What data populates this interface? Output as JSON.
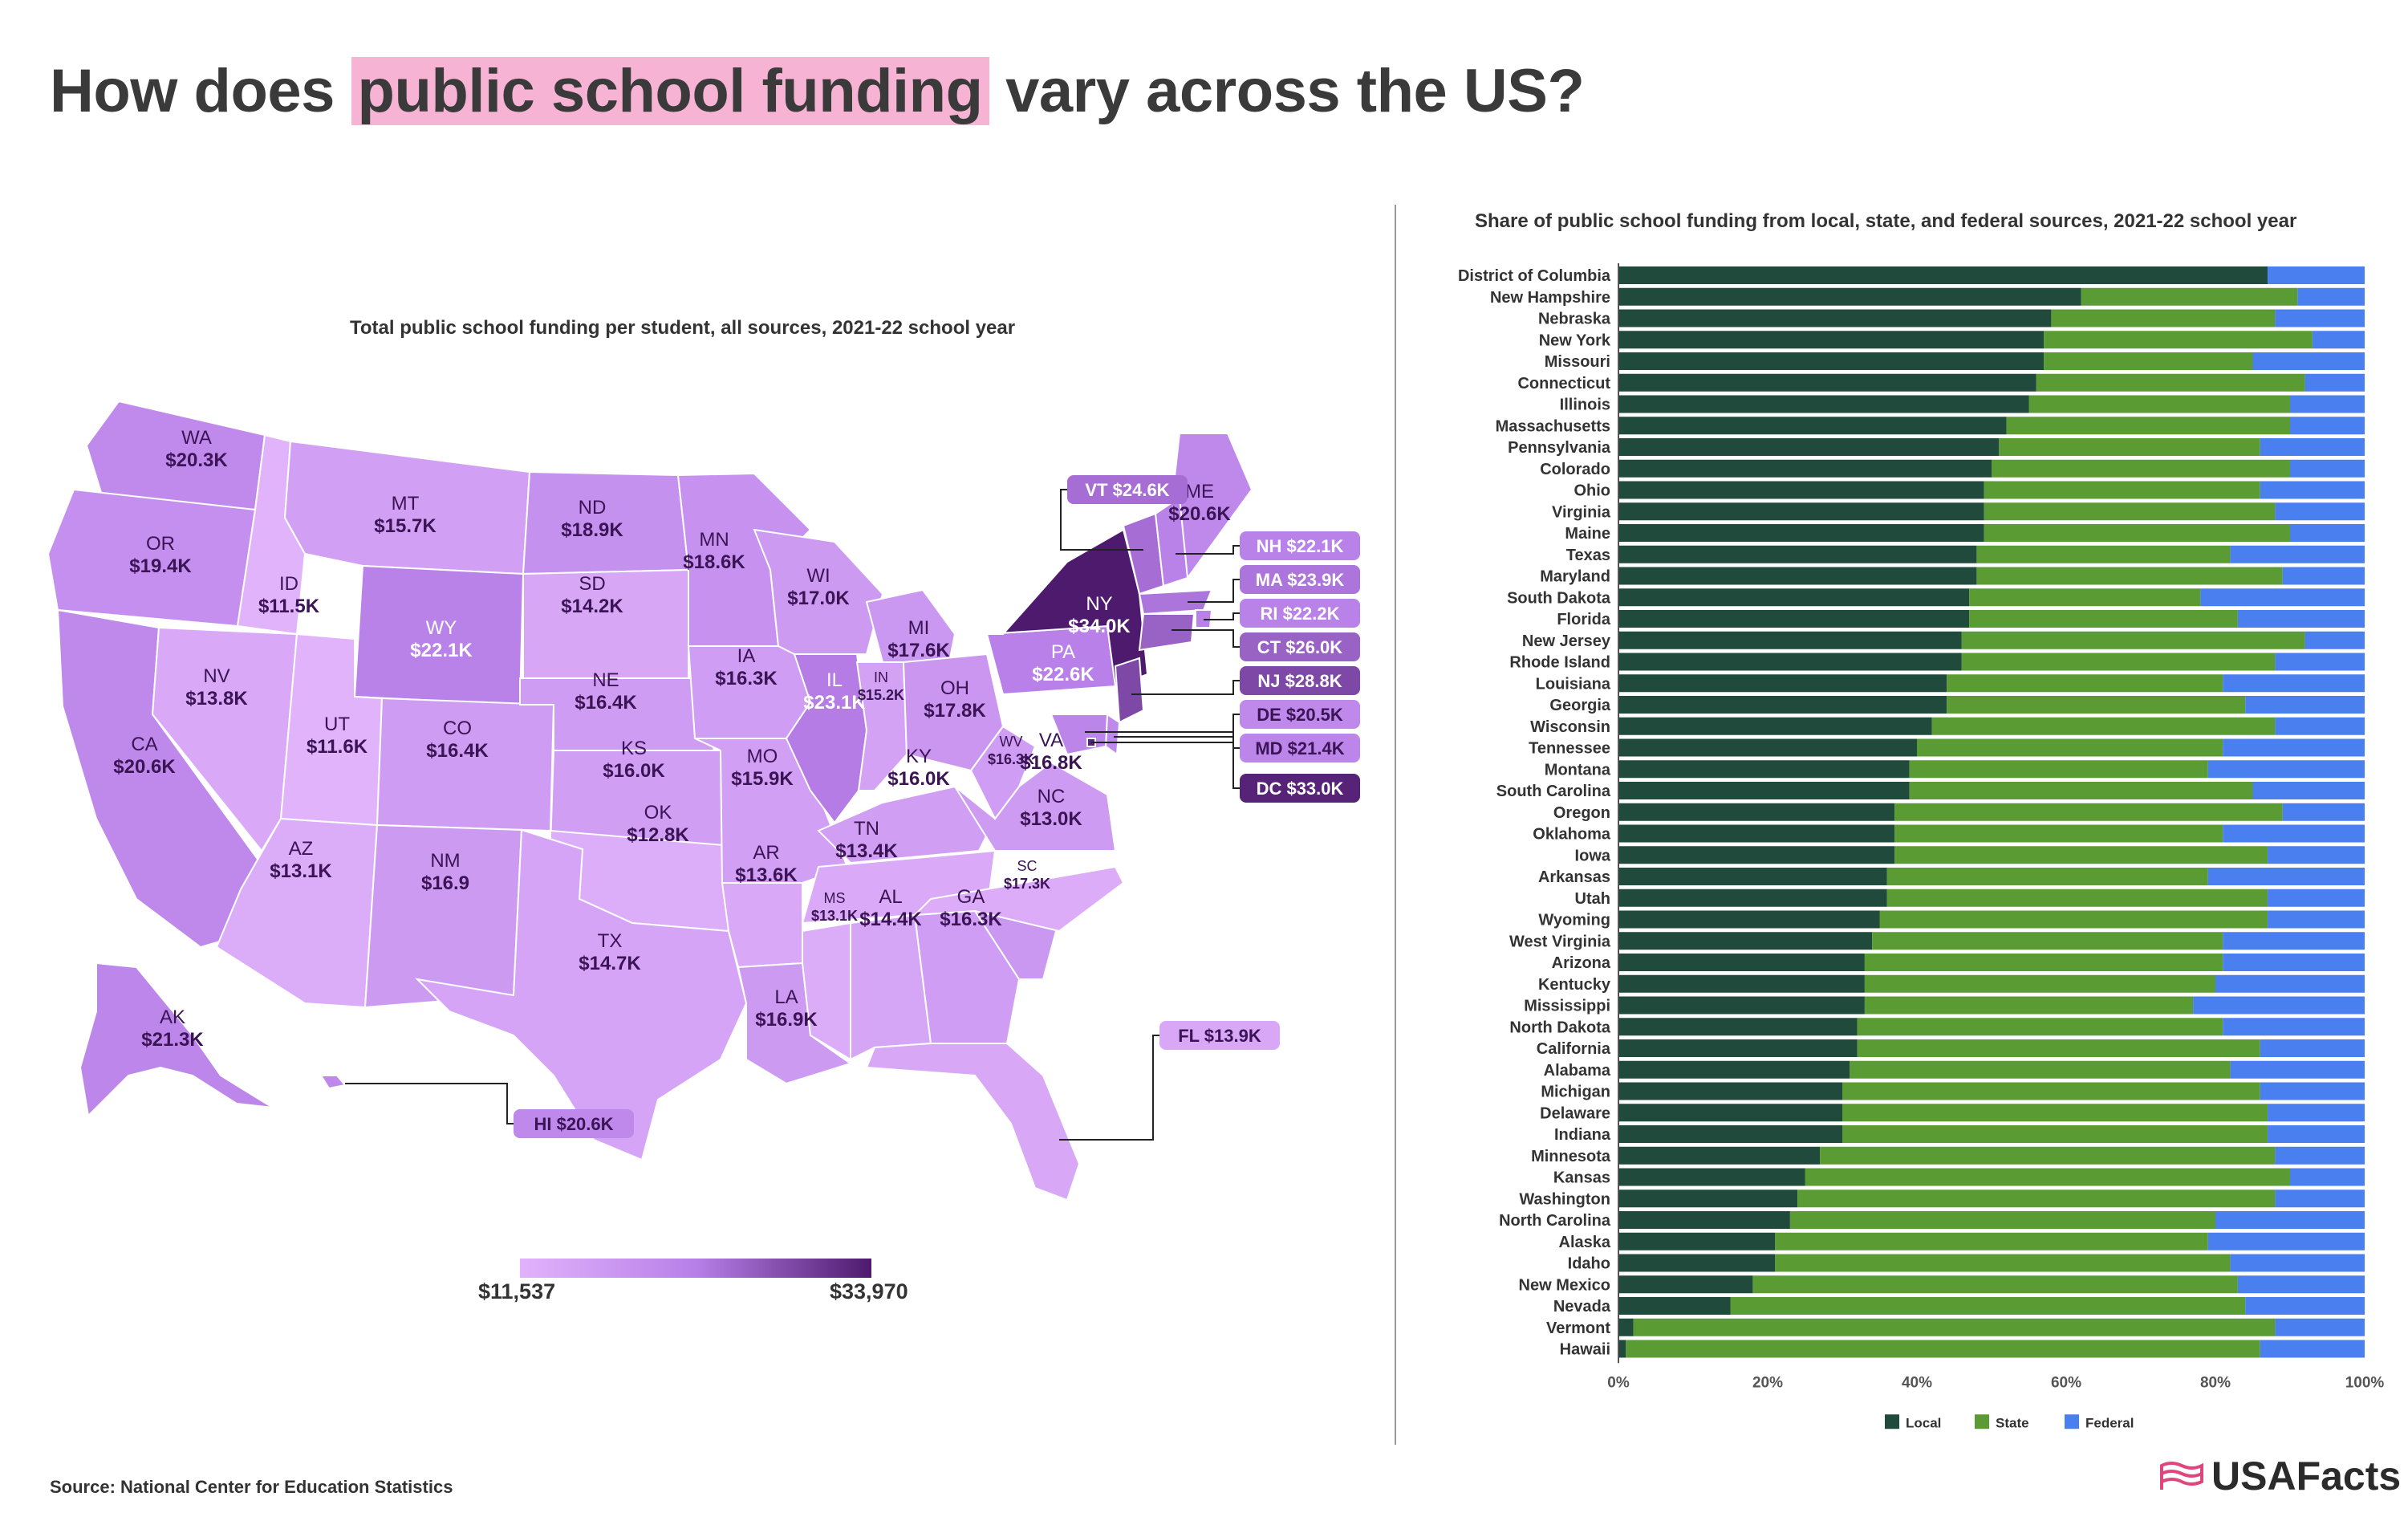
{
  "title": {
    "before": "How does ",
    "highlight": "public school funding",
    "after": " vary across the US?"
  },
  "map_subtitle": "Total public school funding per student, all sources, 2021-22 school year",
  "bar_subtitle": "Share of public school funding from local, state, and federal sources, 2021-22 school year",
  "legend": {
    "min": "$11,537",
    "max": "$33,970",
    "min_value": 11537,
    "max_value": 33970
  },
  "source": "Source: National Center for Education Statistics",
  "logo": "USAFacts",
  "colors": {
    "local": "#1f4a3c",
    "state": "#5a9b34",
    "federal": "#4a7ff0",
    "map_low": "#e1b3fb",
    "map_mid": "#b77fe8",
    "map_high": "#4e1a6e",
    "title_highlight": "#f7b3d4"
  },
  "map_states": [
    {
      "abbr": "WA",
      "value": "$20.3K"
    },
    {
      "abbr": "OR",
      "value": "$19.4K"
    },
    {
      "abbr": "CA",
      "value": "$20.6K"
    },
    {
      "abbr": "ID",
      "value": "$11.5K"
    },
    {
      "abbr": "NV",
      "value": "$13.8K"
    },
    {
      "abbr": "MT",
      "value": "$15.7K"
    },
    {
      "abbr": "WY",
      "value": "$22.1K"
    },
    {
      "abbr": "UT",
      "value": "$11.6K"
    },
    {
      "abbr": "AZ",
      "value": "$13.1K"
    },
    {
      "abbr": "CO",
      "value": "$16.4K"
    },
    {
      "abbr": "NM",
      "value": "$16.9"
    },
    {
      "abbr": "ND",
      "value": "$18.9K"
    },
    {
      "abbr": "SD",
      "value": "$14.2K"
    },
    {
      "abbr": "NE",
      "value": "$16.4K"
    },
    {
      "abbr": "KS",
      "value": "$16.0K"
    },
    {
      "abbr": "OK",
      "value": "$12.8K"
    },
    {
      "abbr": "TX",
      "value": "$14.7K"
    },
    {
      "abbr": "MN",
      "value": "$18.6K"
    },
    {
      "abbr": "IA",
      "value": "$16.3K"
    },
    {
      "abbr": "MO",
      "value": "$15.9K"
    },
    {
      "abbr": "AR",
      "value": "$13.6K"
    },
    {
      "abbr": "LA",
      "value": "$16.9K"
    },
    {
      "abbr": "WI",
      "value": "$17.0K"
    },
    {
      "abbr": "IL",
      "value": "$23.1K"
    },
    {
      "abbr": "MI",
      "value": "$17.6K"
    },
    {
      "abbr": "IN",
      "value": "$15.2K"
    },
    {
      "abbr": "OH",
      "value": "$17.8K"
    },
    {
      "abbr": "KY",
      "value": "$16.0K"
    },
    {
      "abbr": "TN",
      "value": "$13.4K"
    },
    {
      "abbr": "MS",
      "value": "$13.1K"
    },
    {
      "abbr": "AL",
      "value": "$14.4K"
    },
    {
      "abbr": "GA",
      "value": "$16.3K"
    },
    {
      "abbr": "FL",
      "value": "$13.9K"
    },
    {
      "abbr": "SC",
      "value": "$17.3K"
    },
    {
      "abbr": "NC",
      "value": "$13.0K"
    },
    {
      "abbr": "VA",
      "value": "$16.8K"
    },
    {
      "abbr": "WV",
      "value": "$16.3K"
    },
    {
      "abbr": "PA",
      "value": "$22.6K"
    },
    {
      "abbr": "NY",
      "value": "$34.0K"
    },
    {
      "abbr": "ME",
      "value": "$20.6K"
    },
    {
      "abbr": "VT",
      "value": "$24.6K"
    },
    {
      "abbr": "NH",
      "value": "$22.1K"
    },
    {
      "abbr": "MA",
      "value": "$23.9K"
    },
    {
      "abbr": "RI",
      "value": "$22.2K"
    },
    {
      "abbr": "CT",
      "value": "$26.0K"
    },
    {
      "abbr": "NJ",
      "value": "$28.8K"
    },
    {
      "abbr": "DE",
      "value": "$20.5K"
    },
    {
      "abbr": "MD",
      "value": "$21.4K"
    },
    {
      "abbr": "DC",
      "value": "$33.0K"
    },
    {
      "abbr": "AK",
      "value": "$21.3K"
    },
    {
      "abbr": "HI",
      "value": "$20.6K"
    }
  ],
  "chart_data": {
    "type": "bar",
    "orientation": "horizontal-stacked-100",
    "title": "Share of public school funding from local, state, and federal sources, 2021-22 school year",
    "xlim": [
      0,
      100
    ],
    "x_ticks": [
      "0%",
      "20%",
      "40%",
      "60%",
      "80%",
      "100%"
    ],
    "legend_position": "bottom",
    "categories": [
      "District of Columbia",
      "New Hampshire",
      "Nebraska",
      "New York",
      "Missouri",
      "Connecticut",
      "Illinois",
      "Massachusetts",
      "Pennsylvania",
      "Colorado",
      "Ohio",
      "Virginia",
      "Maine",
      "Texas",
      "Maryland",
      "South Dakota",
      "Florida",
      "New Jersey",
      "Rhode Island",
      "Louisiana",
      "Georgia",
      "Wisconsin",
      "Tennessee",
      "Montana",
      "South Carolina",
      "Oregon",
      "Oklahoma",
      "Iowa",
      "Arkansas",
      "Utah",
      "Wyoming",
      "West Virginia",
      "Arizona",
      "Kentucky",
      "Mississippi",
      "North Dakota",
      "California",
      "Alabama",
      "Michigan",
      "Delaware",
      "Indiana",
      "Minnesota",
      "Kansas",
      "Washington",
      "North Carolina",
      "Alaska",
      "Idaho",
      "New Mexico",
      "Nevada",
      "Vermont",
      "Hawaii"
    ],
    "series": [
      {
        "name": "Local",
        "values": [
          87,
          62,
          58,
          57,
          57,
          56,
          55,
          52,
          51,
          50,
          49,
          49,
          49,
          48,
          48,
          47,
          47,
          46,
          46,
          44,
          44,
          42,
          40,
          39,
          39,
          37,
          37,
          37,
          36,
          36,
          35,
          34,
          33,
          33,
          33,
          32,
          32,
          31,
          30,
          30,
          30,
          27,
          25,
          24,
          23,
          21,
          21,
          18,
          15,
          2,
          1
        ]
      },
      {
        "name": "State",
        "values": [
          0,
          29,
          30,
          36,
          28,
          36,
          35,
          38,
          35,
          40,
          37,
          39,
          41,
          34,
          41,
          31,
          36,
          46,
          42,
          37,
          40,
          46,
          41,
          40,
          46,
          52,
          44,
          50,
          43,
          51,
          52,
          47,
          48,
          47,
          44,
          49,
          54,
          51,
          56,
          57,
          57,
          61,
          65,
          64,
          57,
          58,
          61,
          65,
          69,
          86,
          85
        ]
      },
      {
        "name": "Federal",
        "values": [
          13,
          9,
          12,
          7,
          15,
          8,
          10,
          10,
          14,
          10,
          14,
          12,
          10,
          18,
          11,
          22,
          17,
          8,
          12,
          19,
          16,
          12,
          19,
          21,
          15,
          11,
          19,
          13,
          21,
          13,
          13,
          19,
          19,
          20,
          23,
          19,
          14,
          18,
          14,
          13,
          13,
          12,
          10,
          12,
          20,
          21,
          18,
          17,
          16,
          12,
          14
        ]
      }
    ]
  }
}
